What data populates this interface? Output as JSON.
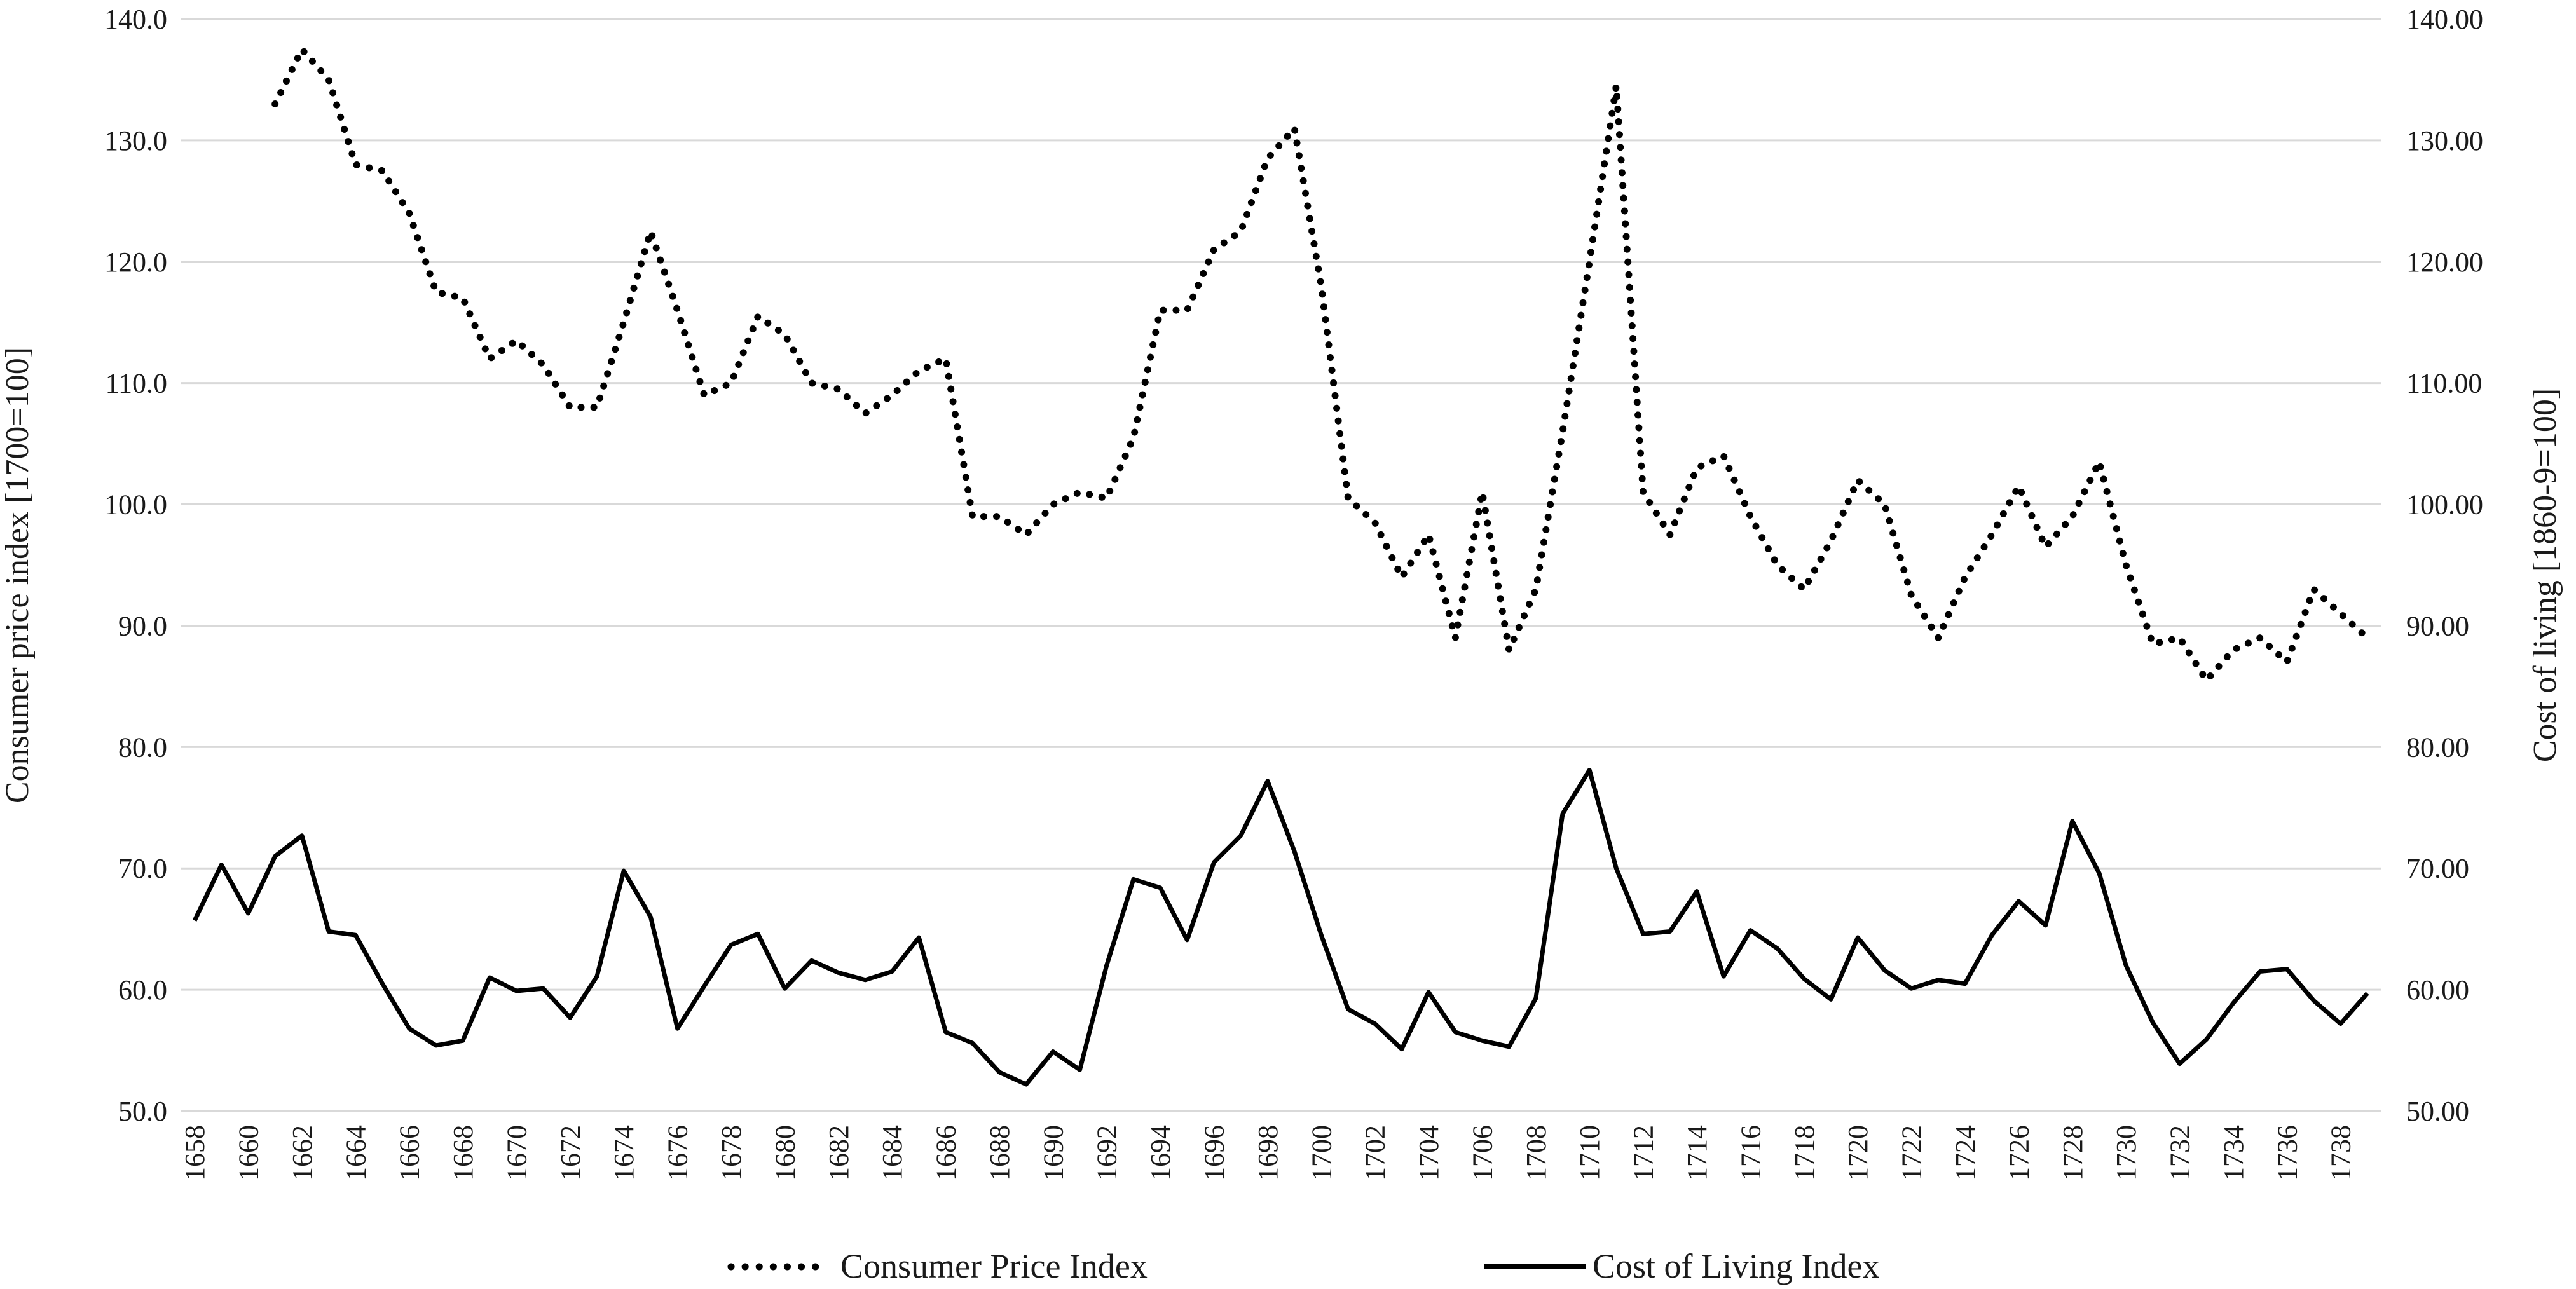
{
  "chart_data": {
    "type": "line",
    "title": "",
    "ylabel_left": "Consumer price index [1700=100]",
    "ylabel_right": "Cost of living [1860-9=100]",
    "ylim_left": [
      50,
      140
    ],
    "ylim_right": [
      50,
      140
    ],
    "yticks_left": [
      "50.0",
      "60.0",
      "70.0",
      "80.0",
      "90.0",
      "100.0",
      "110.0",
      "120.0",
      "130.0",
      "140.0"
    ],
    "yticks_right": [
      "50.00",
      "60.00",
      "70.00",
      "80.00",
      "90.00",
      "100.00",
      "110.00",
      "120.00",
      "130.00",
      "140.00"
    ],
    "xlim": [
      1658,
      1739
    ],
    "xtick_labels": [
      "1658",
      "1660",
      "1662",
      "1664",
      "1666",
      "1668",
      "1670",
      "1672",
      "1674",
      "1676",
      "1678",
      "1680",
      "1682",
      "1684",
      "1686",
      "1688",
      "1690",
      "1692",
      "1694",
      "1696",
      "1698",
      "1700",
      "1702",
      "1704",
      "1706",
      "1708",
      "1710",
      "1712",
      "1714",
      "1716",
      "1718",
      "1720",
      "1722",
      "1724",
      "1726",
      "1728",
      "1730",
      "1732",
      "1734",
      "1736",
      "1738"
    ],
    "grid": "horizontal",
    "legend_position": "bottom",
    "series": [
      {
        "name": "Consumer Price Index",
        "style": "dotted",
        "axis": "left",
        "color": "#000000",
        "x": [
          1661,
          1662,
          1663,
          1664,
          1665,
          1666,
          1667,
          1668,
          1669,
          1670,
          1671,
          1672,
          1673,
          1674,
          1675,
          1676,
          1677,
          1678,
          1679,
          1680,
          1681,
          1682,
          1683,
          1684,
          1685,
          1686,
          1687,
          1688,
          1689,
          1690,
          1691,
          1692,
          1693,
          1694,
          1695,
          1696,
          1697,
          1698,
          1699,
          1700,
          1701,
          1702,
          1703,
          1704,
          1705,
          1706,
          1707,
          1708,
          1709,
          1710,
          1711,
          1712,
          1713,
          1714,
          1715,
          1716,
          1717,
          1718,
          1719,
          1720,
          1721,
          1722,
          1723,
          1724,
          1725,
          1726,
          1727,
          1728,
          1729,
          1730,
          1731,
          1732,
          1733,
          1734,
          1735,
          1736,
          1737,
          1738,
          1739
        ],
        "values": [
          133.0,
          137.5,
          135.0,
          128.0,
          127.5,
          124.0,
          117.5,
          117.0,
          112.0,
          113.5,
          111.5,
          108.0,
          108.0,
          115.0,
          122.5,
          116.0,
          109.0,
          110.0,
          115.5,
          114.0,
          110.0,
          109.5,
          107.5,
          109.0,
          111.0,
          112.0,
          99.0,
          99.0,
          97.5,
          100.0,
          101.0,
          100.5,
          105.5,
          116.0,
          116.0,
          121.0,
          122.5,
          128.5,
          131.0,
          118.0,
          100.5,
          98.5,
          94.0,
          97.5,
          89.0,
          101.0,
          88.0,
          93.0,
          106.0,
          120.0,
          134.5,
          101.0,
          97.5,
          103.0,
          104.0,
          99.0,
          95.0,
          93.0,
          97.0,
          102.0,
          100.0,
          92.5,
          89.0,
          94.0,
          97.5,
          101.5,
          96.5,
          99.0,
          103.5,
          95.0,
          88.5,
          89.0,
          85.5,
          88.0,
          89.0,
          87.0,
          93.0,
          91.0,
          89.0
        ]
      },
      {
        "name": "Cost of Living Index",
        "style": "solid",
        "axis": "right",
        "color": "#000000",
        "x": [
          1658,
          1659,
          1660,
          1661,
          1662,
          1663,
          1664,
          1665,
          1666,
          1667,
          1668,
          1669,
          1670,
          1671,
          1672,
          1673,
          1674,
          1675,
          1676,
          1677,
          1678,
          1679,
          1680,
          1681,
          1682,
          1683,
          1684,
          1685,
          1686,
          1687,
          1688,
          1689,
          1690,
          1691,
          1692,
          1693,
          1694,
          1695,
          1696,
          1697,
          1698,
          1699,
          1700,
          1701,
          1702,
          1703,
          1704,
          1705,
          1706,
          1707,
          1708,
          1709,
          1710,
          1711,
          1712,
          1713,
          1714,
          1715,
          1716,
          1717,
          1718,
          1719,
          1720,
          1721,
          1722,
          1723,
          1724,
          1725,
          1726,
          1727,
          1728,
          1729,
          1730,
          1731,
          1732,
          1733,
          1734,
          1735,
          1736,
          1737,
          1738,
          1739
        ],
        "values": [
          65.7,
          70.3,
          66.3,
          71.0,
          72.7,
          64.8,
          64.5,
          60.5,
          56.8,
          55.4,
          55.8,
          61.0,
          59.9,
          60.1,
          57.7,
          61.1,
          69.8,
          66.0,
          56.8,
          60.3,
          63.7,
          64.6,
          60.1,
          62.4,
          61.4,
          60.8,
          61.5,
          64.3,
          56.5,
          55.6,
          53.2,
          52.2,
          54.9,
          53.4,
          62.0,
          69.1,
          68.4,
          64.1,
          70.5,
          72.7,
          77.2,
          71.4,
          64.5,
          58.4,
          57.2,
          55.1,
          59.8,
          56.5,
          55.8,
          55.3,
          59.3,
          74.5,
          78.1,
          70.0,
          64.6,
          64.8,
          68.1,
          61.1,
          64.9,
          63.4,
          60.9,
          59.2,
          64.3,
          61.6,
          60.1,
          60.8,
          60.5,
          64.5,
          67.3,
          65.3,
          73.9,
          69.6,
          62.0,
          57.3,
          53.9,
          55.9,
          58.9,
          61.5,
          61.7,
          59.1,
          57.2,
          59.7
        ]
      }
    ]
  }
}
